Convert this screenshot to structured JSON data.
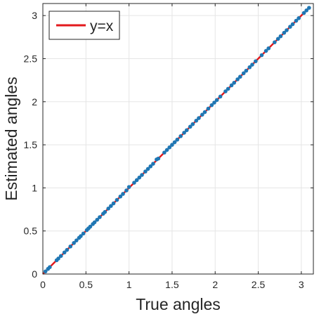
{
  "chart_data": {
    "type": "scatter",
    "xlabel": "True angles",
    "ylabel": "Estimated angles",
    "xlim": [
      0,
      3.14
    ],
    "ylim": [
      0,
      3.14
    ],
    "xticks": [
      0,
      0.5,
      1,
      1.5,
      2,
      2.5,
      3
    ],
    "yticks": [
      0,
      0.5,
      1,
      1.5,
      2,
      2.5,
      3
    ],
    "xtick_labels": [
      "0",
      "0.5",
      "1",
      "1.5",
      "2",
      "2.5",
      "3"
    ],
    "ytick_labels": [
      "0",
      "0.5",
      "1",
      "1.5",
      "2",
      "2.5",
      "3"
    ],
    "grid": true,
    "legend": {
      "position": "top-left",
      "entries": [
        {
          "label": "y=x",
          "color": "#e3191c",
          "style": "line"
        }
      ]
    },
    "colors": {
      "points": "#1f77b4",
      "reference_line": "#e3191c",
      "grid": "#e5e5e5",
      "axes": "#262626"
    },
    "series": [
      {
        "type": "line",
        "x": [
          0,
          3.1
        ],
        "y": [
          0,
          3.1
        ]
      },
      {
        "type": "scatter",
        "x": [
          0.03,
          0.06,
          0.08,
          0.16,
          0.18,
          0.21,
          0.25,
          0.28,
          0.32,
          0.36,
          0.39,
          0.42,
          0.44,
          0.47,
          0.51,
          0.53,
          0.55,
          0.58,
          0.6,
          0.63,
          0.66,
          0.7,
          0.72,
          0.76,
          0.79,
          0.82,
          0.86,
          0.9,
          0.93,
          0.97,
          1.0,
          1.06,
          1.09,
          1.12,
          1.15,
          1.19,
          1.22,
          1.25,
          1.28,
          1.32,
          1.34,
          1.41,
          1.44,
          1.47,
          1.5,
          1.53,
          1.56,
          1.6,
          1.64,
          1.67,
          1.71,
          1.74,
          1.78,
          1.81,
          1.85,
          1.88,
          1.92,
          1.96,
          1.99,
          2.02,
          2.06,
          2.12,
          2.15,
          2.19,
          2.22,
          2.26,
          2.29,
          2.33,
          2.36,
          2.4,
          2.43,
          2.47,
          2.54,
          2.59,
          2.62,
          2.69,
          2.73,
          2.76,
          2.8,
          2.83,
          2.87,
          2.9,
          2.94,
          2.97,
          3.03,
          3.06,
          3.09
        ],
        "y": [
          0.03,
          0.06,
          0.08,
          0.16,
          0.18,
          0.21,
          0.25,
          0.28,
          0.32,
          0.36,
          0.39,
          0.42,
          0.44,
          0.47,
          0.51,
          0.53,
          0.55,
          0.58,
          0.6,
          0.63,
          0.66,
          0.7,
          0.72,
          0.76,
          0.79,
          0.82,
          0.86,
          0.9,
          0.93,
          0.97,
          1.01,
          1.06,
          1.09,
          1.12,
          1.15,
          1.19,
          1.22,
          1.25,
          1.28,
          1.33,
          1.34,
          1.41,
          1.44,
          1.47,
          1.5,
          1.53,
          1.56,
          1.6,
          1.64,
          1.67,
          1.71,
          1.74,
          1.78,
          1.81,
          1.85,
          1.88,
          1.92,
          1.96,
          1.99,
          2.02,
          2.06,
          2.12,
          2.15,
          2.19,
          2.22,
          2.26,
          2.29,
          2.33,
          2.36,
          2.4,
          2.43,
          2.47,
          2.54,
          2.59,
          2.62,
          2.69,
          2.73,
          2.76,
          2.8,
          2.83,
          2.87,
          2.9,
          2.94,
          2.97,
          3.03,
          3.06,
          3.09
        ]
      }
    ]
  }
}
